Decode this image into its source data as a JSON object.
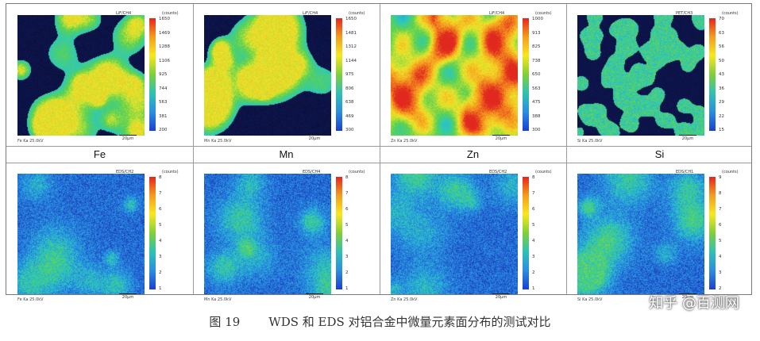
{
  "figure": {
    "caption_number": "图 19",
    "caption_text": "WDS 和 EDS 对铝合金中微量元素面分布的测试对比",
    "element_labels": [
      "Fe",
      "Mn",
      "Zn",
      "Si"
    ],
    "wds_row": [
      {
        "channel": "LiF/CH4",
        "units": "(counts)",
        "ticks": [
          "1650",
          "1469",
          "1288",
          "1106",
          "925",
          "744",
          "563",
          "381",
          "200"
        ],
        "condition": "Fe Ka 25.0kV",
        "scale": "20μm",
        "texture": "blobs"
      },
      {
        "channel": "LiF/CH4",
        "units": "(counts)",
        "ticks": [
          "1650",
          "1481",
          "1312",
          "1144",
          "975",
          "806",
          "638",
          "469",
          "300"
        ],
        "condition": "Mn Ka 25.0kV",
        "scale": "20μm",
        "texture": "blobs"
      },
      {
        "channel": "LiF/CH4",
        "units": "(counts)",
        "ticks": [
          "1000",
          "913",
          "825",
          "738",
          "650",
          "563",
          "475",
          "388",
          "300"
        ],
        "condition": "Zn Ka 25.0kV",
        "scale": "20μm",
        "texture": "zn"
      },
      {
        "channel": "PET/CH3",
        "units": "(counts)",
        "ticks": [
          "70",
          "63",
          "56",
          "50",
          "43",
          "36",
          "29",
          "22",
          "15"
        ],
        "condition": "Si Ka 25.0kV",
        "scale": "20μm",
        "texture": "dots"
      }
    ],
    "eds_row": [
      {
        "channel": "EDS/CH2",
        "units": "(counts)",
        "ticks": [
          "8",
          "7",
          "6",
          "5",
          "4",
          "3",
          "2",
          "1"
        ],
        "condition": "Fe Ka 25.0kV",
        "scale": "20μm",
        "texture": "noise-fe"
      },
      {
        "channel": "EDS/CH4",
        "units": "(counts)",
        "ticks": [
          "8",
          "7",
          "6",
          "5",
          "4",
          "3",
          "2",
          "1"
        ],
        "condition": "Mn Ka 25.0kV",
        "scale": "20μm",
        "texture": "noise-mn"
      },
      {
        "channel": "EDS/CH2",
        "units": "(counts)",
        "ticks": [
          "8",
          "7",
          "6",
          "5",
          "4",
          "3",
          "2",
          "1"
        ],
        "condition": "Zn Ka 25.0kV",
        "scale": "20μm",
        "texture": "noise-zn"
      },
      {
        "channel": "EDS/CH1",
        "units": "(counts)",
        "ticks": [
          "9",
          "8",
          "7",
          "6",
          "5",
          "4",
          "3",
          "2"
        ],
        "condition": "Si Ka 25.0kV",
        "scale": "20μm",
        "texture": "noise-si"
      }
    ]
  },
  "watermark": "知乎 @百测网"
}
